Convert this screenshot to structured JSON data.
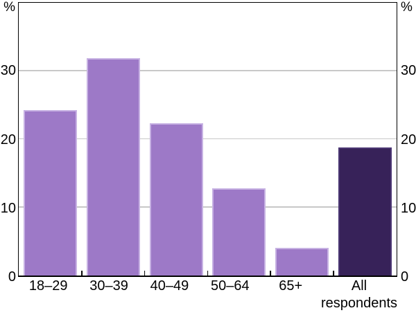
{
  "chart_data": {
    "type": "bar",
    "categories": [
      "18–29",
      "30–39",
      "40–49",
      "50–64",
      "65+",
      "All\nrespondents"
    ],
    "values": [
      24.3,
      31.9,
      22.3,
      12.8,
      4.1,
      18.8
    ],
    "highlight_category": "All respondents",
    "highlight_index": 5,
    "title": "",
    "xlabel": "",
    "ylabel": "",
    "unit_left": "%",
    "unit_right": "%",
    "yticks": [
      0,
      10,
      20,
      30
    ],
    "ylim": [
      0,
      40
    ],
    "grid": true,
    "legend": "none"
  },
  "colors": {
    "bar_fill": "#9d79c7",
    "bar_edge": "#c7b2e3",
    "highlight_fill": "#372259",
    "highlight_edge": "#4b3673",
    "gridline": "#c8c8c8",
    "axis": "#000000",
    "text": "#000000",
    "background": "#ffffff"
  }
}
